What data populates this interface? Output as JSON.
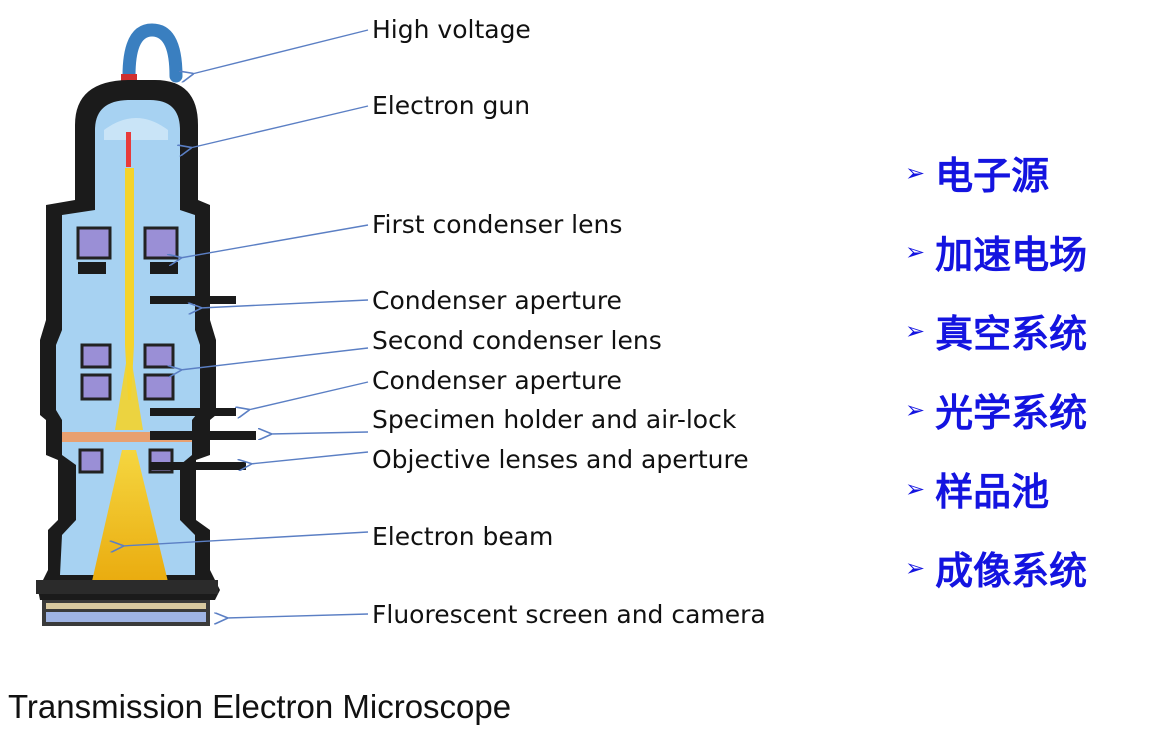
{
  "labels": {
    "high_voltage": "High voltage",
    "electron_gun": "Electron gun",
    "first_condenser_lens": "First condenser lens",
    "condenser_aperture_1": "Condenser  aperture",
    "second_condenser_lens": "Second condenser lens",
    "condenser_aperture_2": "Condenser aperture",
    "specimen_holder": "Specimen holder and air-lock",
    "objective_lenses": "Objective lenses and aperture",
    "electron_beam": "Electron beam",
    "fluorescent_screen": "Fluorescent  screen  and camera"
  },
  "components": {
    "bullet": "➢",
    "items": [
      "电子源",
      "加速电场",
      "真空系统",
      "光学系统",
      "样品池",
      "成像系统"
    ]
  },
  "title": "Transmission Electron Microscope",
  "colors": {
    "component_text": "#1414e0",
    "arrow": "#5b7fc4",
    "column_body": "#1b1b1b",
    "vacuum": "#a7d2f2",
    "lens_coil": "#9a8fd6",
    "beam": "#f2c21a",
    "specimen": "#e8a070"
  }
}
